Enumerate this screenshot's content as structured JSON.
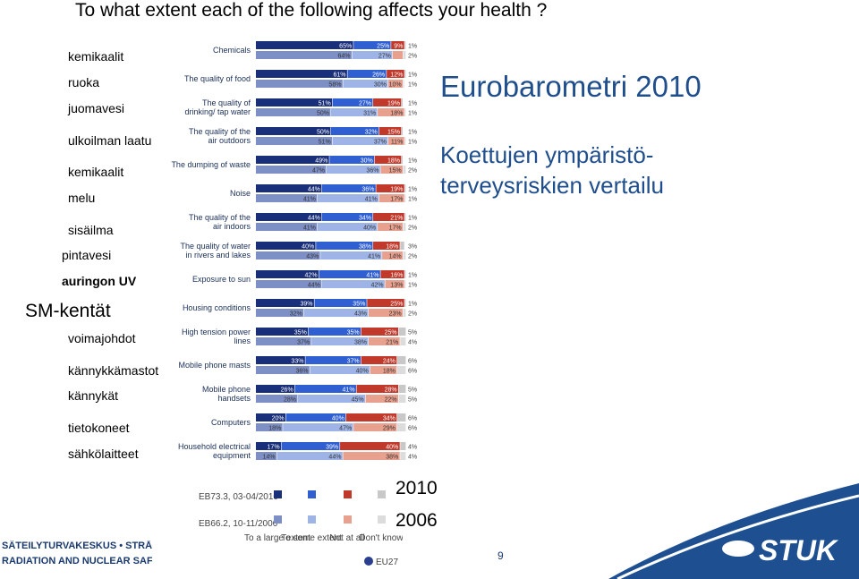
{
  "title": "To what extent each of the following affects your health ?",
  "fin_labels": [
    "kemikaalit",
    "ruoka",
    "juomavesi",
    "ulkoilman laatu",
    "kemikaalit",
    "melu",
    "sisäilma",
    "pintavesi",
    "auringon UV",
    "SM-kentät",
    "voimajohdot",
    "kännykkämastot",
    "kännykät",
    "tietokoneet",
    "sähkölaitteet"
  ],
  "eurobarometer_title": "Eurobarometri 2010",
  "eurobarometer_subtitle_lines": [
    "Koettujen  ympäristö-",
    "terveysriskien vertailu"
  ],
  "legend": {
    "survey_2010": "EB73.3, 03-04/2010",
    "survey_2006": "EB66.2, 10-11/2006",
    "columns": [
      "To a large extent",
      "To some extent",
      "Not at all",
      "Don't know"
    ],
    "eu27": "EU27",
    "year_2010": "2010",
    "year_2006": "2006"
  },
  "footer": {
    "line1": "SÄTEILYTURVAKESKUS • STRÅ",
    "line2": "RADIATION AND NUCLEAR SAF",
    "page_number": "9",
    "logo": "STUK"
  },
  "colors": {
    "large_2010": "#1a2f7a",
    "some_2010": "#2f5fd0",
    "notatall_2010": "#c0392b",
    "dontknow_2010": "#c8c8c8",
    "large_2006": "#7d8fc4",
    "some_2006": "#9fb4e6",
    "notatall_2006": "#e8a08f",
    "dontknow_2006": "#dcdcdc",
    "accent_blue": "#1f4e8c",
    "stuk_blue": "#1d4f91"
  },
  "chart_data": {
    "type": "bar",
    "stacked": true,
    "orientation": "horizontal",
    "categories": [
      "Chemicals",
      "The quality of food",
      "The quality of drinking/ tap water",
      "The quality of the air outdoors",
      "The dumping of waste",
      "Noise",
      "The quality of the air indoors",
      "The quality of water in rivers and lakes",
      "Exposure to sun",
      "Housing conditions",
      "High tension power lines",
      "Mobile phone masts",
      "Mobile phone handsets",
      "Computers",
      "Household electrical equipment"
    ],
    "segment_names": [
      "To a large extent",
      "To some extent",
      "Not at all",
      "Don't know"
    ],
    "series": [
      {
        "name": "2010",
        "values": [
          [
            65,
            25,
            9,
            1
          ],
          [
            61,
            26,
            12,
            1
          ],
          [
            51,
            27,
            19,
            1
          ],
          [
            50,
            32,
            15,
            1
          ],
          [
            49,
            30,
            18,
            1
          ],
          [
            44,
            36,
            19,
            1
          ],
          [
            44,
            34,
            21,
            1
          ],
          [
            40,
            38,
            18,
            3
          ],
          [
            42,
            41,
            16,
            1
          ],
          [
            39,
            35,
            25,
            1
          ],
          [
            35,
            35,
            25,
            5
          ],
          [
            33,
            37,
            24,
            6
          ],
          [
            26,
            41,
            28,
            5
          ],
          [
            20,
            40,
            34,
            6
          ],
          [
            17,
            39,
            40,
            4
          ]
        ]
      },
      {
        "name": "2006",
        "values": [
          [
            64,
            27,
            7,
            2
          ],
          [
            58,
            30,
            10,
            1
          ],
          [
            50,
            31,
            18,
            1
          ],
          [
            51,
            37,
            11,
            1
          ],
          [
            47,
            36,
            15,
            2
          ],
          [
            41,
            41,
            17,
            1
          ],
          [
            41,
            40,
            17,
            2
          ],
          [
            43,
            41,
            14,
            2
          ],
          [
            44,
            42,
            13,
            1
          ],
          [
            32,
            43,
            23,
            2
          ],
          [
            37,
            38,
            21,
            4
          ],
          [
            36,
            40,
            18,
            6
          ],
          [
            28,
            45,
            22,
            5
          ],
          [
            18,
            47,
            29,
            6
          ],
          [
            14,
            44,
            38,
            4
          ]
        ]
      }
    ]
  }
}
